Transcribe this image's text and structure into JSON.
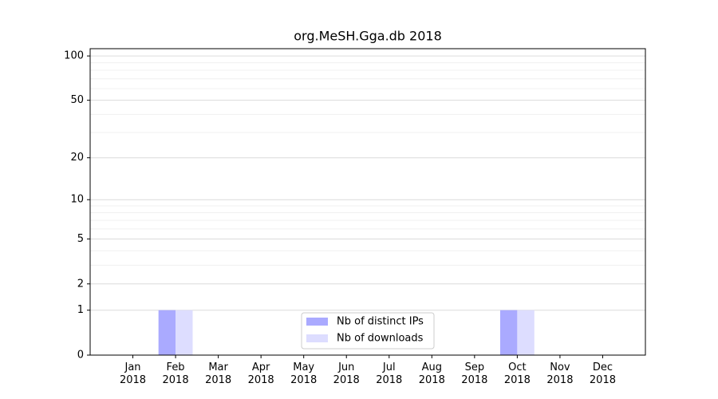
{
  "chart_data": {
    "type": "bar",
    "title": "org.MeSH.Gga.db 2018",
    "categories": [
      "Jan 2018",
      "Feb 2018",
      "Mar 2018",
      "Apr 2018",
      "May 2018",
      "Jun 2018",
      "Jul 2018",
      "Aug 2018",
      "Sep 2018",
      "Oct 2018",
      "Nov 2018",
      "Dec 2018"
    ],
    "series": [
      {
        "name": "Nb of distinct IPs",
        "color": "#aaaaff",
        "values": [
          0,
          1,
          0,
          0,
          0,
          0,
          0,
          0,
          0,
          1,
          0,
          0
        ]
      },
      {
        "name": "Nb of downloads",
        "color": "#ddddff",
        "values": [
          0,
          1,
          0,
          0,
          0,
          0,
          0,
          0,
          0,
          1,
          0,
          0
        ]
      }
    ],
    "yscale": "log1p",
    "ylim": [
      0,
      112
    ],
    "yticks": [
      0,
      1,
      2,
      5,
      10,
      20,
      50,
      100
    ],
    "minor_yticks": [
      3,
      4,
      6,
      7,
      8,
      9,
      30,
      40,
      60,
      70,
      80,
      90
    ],
    "grid": true,
    "legend": "lower center"
  }
}
